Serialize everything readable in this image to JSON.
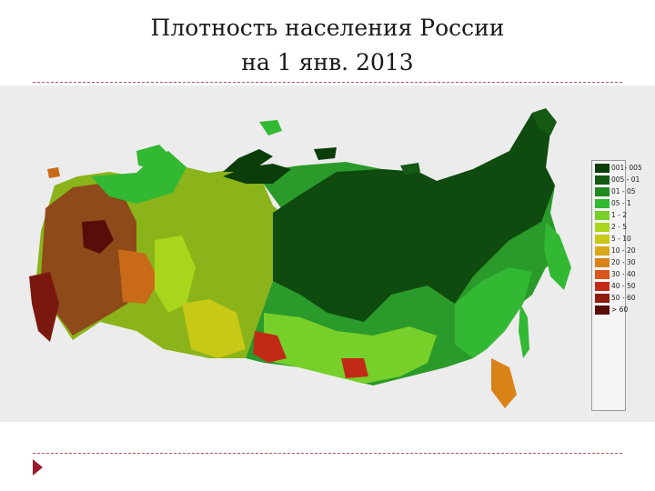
{
  "title": {
    "line1": "Плотность населения России",
    "line2": "на 1 янв. 2013"
  },
  "legend": {
    "items": [
      {
        "label": "001- 005",
        "color": "#0b3d0b"
      },
      {
        "label": "005 - 01",
        "color": "#145a14"
      },
      {
        "label": "01 - 05",
        "color": "#1f8a1f"
      },
      {
        "label": "05 - 1",
        "color": "#33b833"
      },
      {
        "label": "1 - 2",
        "color": "#77cf2a"
      },
      {
        "label": "2 - 5",
        "color": "#a9d61a"
      },
      {
        "label": "5 - 10",
        "color": "#c8c816"
      },
      {
        "label": "10 - 20",
        "color": "#d9a818"
      },
      {
        "label": "20 - 30",
        "color": "#d98218"
      },
      {
        "label": "30 - 40",
        "color": "#d9561a"
      },
      {
        "label": "40 - 50",
        "color": "#c22a18"
      },
      {
        "label": "50 - 60",
        "color": "#8e1b10"
      },
      {
        "label": "> 60",
        "color": "#5a0c08"
      }
    ]
  },
  "colors": {
    "background": "#ececec",
    "divider": "#b4535d",
    "nav_arrow": "#9b1c2e"
  },
  "nav": {
    "icon": "next-slide-arrow-icon"
  }
}
